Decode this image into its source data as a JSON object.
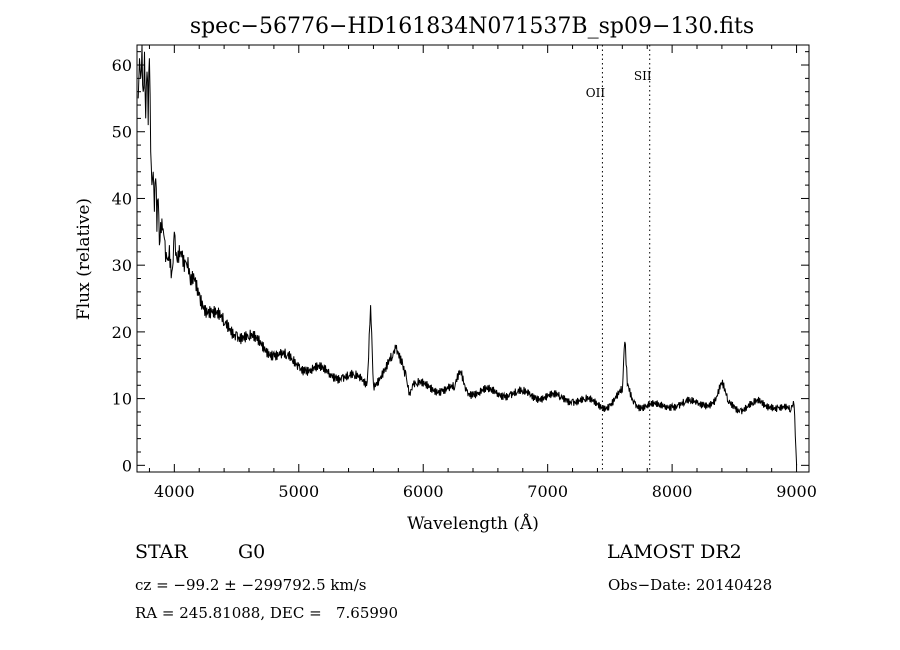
{
  "chart_data": {
    "type": "line",
    "title": "spec−56776−HD161834N071537B_sp09−130.fits",
    "xlabel": "Wavelength (Å)",
    "ylabel": "Flux (relative)",
    "xlim": [
      3700,
      9100
    ],
    "ylim": [
      -1,
      63
    ],
    "xticks": [
      4000,
      5000,
      6000,
      7000,
      8000,
      9000
    ],
    "yticks": [
      0,
      10,
      20,
      30,
      40,
      50,
      60
    ],
    "grid": false,
    "series": [
      {
        "values": [
          [
            3710,
            55
          ],
          [
            3720,
            61
          ],
          [
            3730,
            58
          ],
          [
            3740,
            63
          ],
          [
            3750,
            56
          ],
          [
            3760,
            62
          ],
          [
            3770,
            52
          ],
          [
            3780,
            59
          ],
          [
            3790,
            51
          ],
          [
            3800,
            61
          ],
          [
            3810,
            47
          ],
          [
            3820,
            42
          ],
          [
            3830,
            44
          ],
          [
            3840,
            38
          ],
          [
            3850,
            43
          ],
          [
            3860,
            35
          ],
          [
            3870,
            40
          ],
          [
            3880,
            33
          ],
          [
            3900,
            37
          ],
          [
            3920,
            34
          ],
          [
            3940,
            31
          ],
          [
            3960,
            33
          ],
          [
            3980,
            29
          ],
          [
            4000,
            35
          ],
          [
            4020,
            31
          ],
          [
            4050,
            32
          ],
          [
            4080,
            29
          ],
          [
            4100,
            30
          ],
          [
            4130,
            27
          ],
          [
            4160,
            28
          ],
          [
            4200,
            26
          ],
          [
            4250,
            24
          ],
          [
            4300,
            23
          ],
          [
            4350,
            22
          ],
          [
            4400,
            21
          ],
          [
            4450,
            20.5
          ],
          [
            4500,
            20
          ],
          [
            4550,
            19.5
          ],
          [
            4600,
            19
          ],
          [
            4650,
            18.5
          ],
          [
            4700,
            18
          ],
          [
            4750,
            17.5
          ],
          [
            4800,
            17
          ],
          [
            4850,
            16.5
          ],
          [
            4900,
            16
          ],
          [
            4950,
            15.5
          ],
          [
            5000,
            15
          ],
          [
            5050,
            14.8
          ],
          [
            5100,
            14.5
          ],
          [
            5150,
            14.3
          ],
          [
            5200,
            14
          ],
          [
            5250,
            13.8
          ],
          [
            5300,
            13.6
          ],
          [
            5350,
            13.4
          ],
          [
            5400,
            13.2
          ],
          [
            5450,
            13
          ],
          [
            5500,
            12.8
          ],
          [
            5550,
            12.5
          ],
          [
            5577,
            24
          ],
          [
            5600,
            12.3
          ],
          [
            5650,
            12.8
          ],
          [
            5700,
            14
          ],
          [
            5750,
            16
          ],
          [
            5780,
            17.5
          ],
          [
            5800,
            17
          ],
          [
            5830,
            16
          ],
          [
            5860,
            14
          ],
          [
            5890,
            11
          ],
          [
            5920,
            12
          ],
          [
            5950,
            12
          ],
          [
            6000,
            11.8
          ],
          [
            6050,
            11.7
          ],
          [
            6100,
            11.6
          ],
          [
            6150,
            11.5
          ],
          [
            6200,
            11.4
          ],
          [
            6250,
            11.3
          ],
          [
            6300,
            14
          ],
          [
            6350,
            11.2
          ],
          [
            6400,
            11.1
          ],
          [
            6450,
            11
          ],
          [
            6500,
            11
          ],
          [
            6550,
            10.9
          ],
          [
            6600,
            10.9
          ],
          [
            6650,
            10.8
          ],
          [
            6700,
            10.8
          ],
          [
            6750,
            10.7
          ],
          [
            6800,
            10.7
          ],
          [
            6850,
            10.6
          ],
          [
            6900,
            10.5
          ],
          [
            6950,
            10.4
          ],
          [
            7000,
            10.3
          ],
          [
            7050,
            10.2
          ],
          [
            7100,
            10.1
          ],
          [
            7150,
            10
          ],
          [
            7200,
            9.9
          ],
          [
            7250,
            9.8
          ],
          [
            7300,
            9.6
          ],
          [
            7350,
            9.4
          ],
          [
            7400,
            9.2
          ],
          [
            7450,
            9
          ],
          [
            7500,
            9.2
          ],
          [
            7550,
            10
          ],
          [
            7600,
            11
          ],
          [
            7620,
            18.5
          ],
          [
            7640,
            12
          ],
          [
            7680,
            10
          ],
          [
            7700,
            9.5
          ],
          [
            7750,
            9
          ],
          [
            7800,
            9
          ],
          [
            7850,
            8.8
          ],
          [
            7900,
            8.7
          ],
          [
            7950,
            9
          ],
          [
            8000,
            9.2
          ],
          [
            8050,
            9.1
          ],
          [
            8100,
            9.2
          ],
          [
            8150,
            9.3
          ],
          [
            8200,
            9.3
          ],
          [
            8250,
            9.5
          ],
          [
            8300,
            9.4
          ],
          [
            8350,
            9.6
          ],
          [
            8400,
            12
          ],
          [
            8450,
            9.5
          ],
          [
            8500,
            9
          ],
          [
            8550,
            8.5
          ],
          [
            8600,
            8.8
          ],
          [
            8650,
            9
          ],
          [
            8700,
            9.3
          ],
          [
            8750,
            9
          ],
          [
            8800,
            9.2
          ],
          [
            8850,
            8.8
          ],
          [
            8900,
            8.5
          ],
          [
            8950,
            8
          ],
          [
            8980,
            9
          ],
          [
            9000,
            0
          ]
        ]
      }
    ],
    "annotations": [
      {
        "label": "OII",
        "x": 7440
      },
      {
        "label": "SII",
        "x": 7820
      }
    ]
  },
  "info": {
    "object_class": "STAR",
    "subclass": "G0",
    "survey": "LAMOST DR2",
    "velocity": "cz = −99.2 ± −299792.5 km/s",
    "obs_date": "Obs−Date: 20140428",
    "coords": "RA = 245.81088, DEC =   7.65990"
  }
}
